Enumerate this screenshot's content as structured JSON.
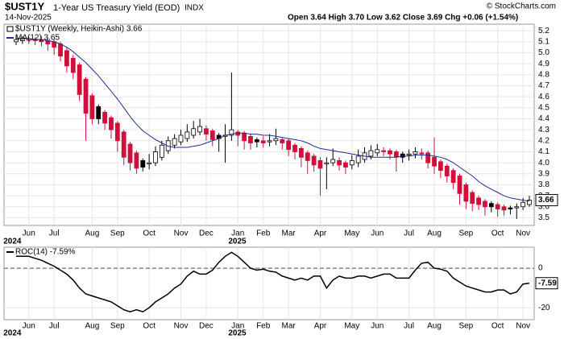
{
  "chart_data": [
    {
      "type": "candlestick",
      "symbol": "$UST1Y",
      "title": "1-Year US Treasury Yield (EOD)",
      "exchange": "INDX",
      "date": "14-Nov-2025",
      "quote": "Open 3.64 High 3.70 Low 3.62 Close 3.69 Chg +0.06 (+1.54%)",
      "copyright": "© StockCharts.com",
      "name": "$UST1Y (Weekly, Heikin-Ashi) 3.66",
      "open": [
        5.1,
        5.11,
        5.12,
        5.12,
        5.12,
        5.11,
        5.1,
        5.08,
        5.02,
        4.95,
        4.89,
        4.76,
        4.61,
        4.51,
        4.46,
        4.41,
        4.36,
        4.28,
        4.17,
        4.09,
        4.02,
        3.99,
        4.0,
        4.05,
        4.11,
        4.16,
        4.19,
        4.22,
        4.25,
        4.28,
        4.31,
        4.29,
        4.25,
        4.24,
        4.25,
        4.28,
        4.27,
        4.24,
        4.21,
        4.2,
        4.19,
        4.2,
        4.21,
        4.2,
        4.16,
        4.13,
        4.09,
        4.06,
        4.02,
        3.99,
        4.0,
        4.02,
        4.0,
        3.98,
        4.0,
        4.03,
        4.06,
        4.09,
        4.11,
        4.11,
        4.1,
        4.08,
        4.07,
        4.08,
        4.09,
        4.09,
        4.05,
        4.01,
        3.97,
        3.93,
        3.88,
        3.8,
        3.73,
        3.68,
        3.65,
        3.63,
        3.62,
        3.6,
        3.59,
        3.59,
        3.6,
        3.62
      ],
      "high": [
        5.16,
        5.15,
        5.15,
        5.14,
        5.15,
        5.14,
        5.12,
        5.1,
        5.05,
        4.98,
        4.91,
        4.78,
        4.63,
        4.53,
        4.48,
        4.43,
        4.38,
        4.3,
        4.19,
        4.11,
        4.04,
        4.08,
        4.15,
        4.2,
        4.24,
        4.26,
        4.3,
        4.35,
        4.38,
        4.4,
        4.34,
        4.31,
        4.27,
        4.35,
        4.82,
        4.3,
        4.29,
        4.26,
        4.23,
        4.24,
        4.26,
        4.31,
        4.23,
        4.22,
        4.18,
        4.15,
        4.11,
        4.08,
        4.05,
        4.05,
        4.13,
        4.05,
        4.02,
        4.07,
        4.12,
        4.14,
        4.16,
        4.17,
        4.14,
        4.13,
        4.12,
        4.1,
        4.12,
        4.14,
        4.13,
        4.11,
        4.23,
        4.03,
        3.99,
        3.95,
        3.9,
        3.82,
        3.75,
        3.7,
        3.67,
        3.65,
        3.64,
        3.62,
        3.61,
        3.63,
        3.68,
        3.7
      ],
      "low": [
        5.07,
        5.08,
        5.08,
        5.07,
        5.06,
        5.02,
        4.98,
        4.92,
        4.82,
        4.76,
        4.56,
        4.2,
        4.35,
        4.35,
        4.3,
        4.22,
        4.1,
        3.98,
        3.93,
        3.9,
        3.92,
        3.94,
        3.97,
        4.02,
        4.08,
        4.13,
        4.16,
        4.19,
        4.22,
        4.25,
        4.2,
        4.15,
        4.1,
        4.0,
        4.2,
        4.15,
        4.12,
        4.12,
        4.14,
        4.14,
        4.15,
        4.16,
        4.12,
        4.06,
        4.03,
        3.96,
        3.9,
        3.92,
        3.7,
        3.76,
        3.97,
        3.93,
        3.9,
        3.94,
        3.96,
        4.0,
        4.03,
        4.06,
        4.06,
        4.03,
        3.92,
        4.0,
        4.02,
        4.04,
        4.03,
        3.95,
        3.9,
        3.86,
        3.82,
        3.76,
        3.62,
        3.58,
        3.56,
        3.57,
        3.52,
        3.55,
        3.51,
        3.52,
        3.53,
        3.49,
        3.57,
        3.6
      ],
      "close": [
        5.12,
        5.13,
        5.12,
        5.11,
        5.1,
        5.08,
        5.05,
        4.97,
        4.88,
        4.82,
        4.62,
        4.45,
        4.4,
        4.4,
        4.36,
        4.3,
        4.2,
        4.05,
        4.0,
        3.95,
        3.96,
        4.0,
        4.1,
        4.16,
        4.2,
        4.22,
        4.25,
        4.28,
        4.31,
        4.33,
        4.26,
        4.21,
        4.22,
        4.25,
        4.3,
        4.25,
        4.2,
        4.18,
        4.19,
        4.18,
        4.2,
        4.22,
        4.18,
        4.12,
        4.1,
        4.05,
        4.02,
        3.98,
        3.95,
        4.0,
        4.03,
        3.98,
        3.96,
        4.02,
        4.06,
        4.09,
        4.11,
        4.12,
        4.1,
        4.08,
        4.05,
        4.05,
        4.08,
        4.1,
        4.08,
        4.0,
        3.97,
        3.93,
        3.88,
        3.82,
        3.72,
        3.65,
        3.63,
        3.62,
        3.6,
        3.6,
        3.58,
        3.57,
        3.58,
        3.6,
        3.64,
        3.66
      ],
      "up_color": "#ffffff",
      "down_color": "#d0103a",
      "neutral_color": "#000000",
      "series": [
        {
          "name": "MA(12) 3.65",
          "color": "#1f2d8c",
          "values": [
            5.13,
            5.13,
            5.13,
            5.12,
            5.12,
            5.11,
            5.1,
            5.08,
            5.05,
            5.01,
            4.96,
            4.91,
            4.85,
            4.79,
            4.72,
            4.65,
            4.58,
            4.5,
            4.42,
            4.35,
            4.29,
            4.25,
            4.21,
            4.18,
            4.15,
            4.14,
            4.14,
            4.14,
            4.15,
            4.16,
            4.18,
            4.2,
            4.22,
            4.25,
            4.26,
            4.27,
            4.27,
            4.26,
            4.26,
            4.25,
            4.25,
            4.24,
            4.23,
            4.22,
            4.21,
            4.2,
            4.18,
            4.15,
            4.13,
            4.12,
            4.11,
            4.1,
            4.09,
            4.08,
            4.07,
            4.06,
            4.05,
            4.05,
            4.05,
            4.05,
            4.05,
            4.06,
            4.06,
            4.07,
            4.07,
            4.07,
            4.06,
            4.05,
            4.03,
            4.0,
            3.96,
            3.92,
            3.88,
            3.83,
            3.79,
            3.76,
            3.73,
            3.7,
            3.68,
            3.67,
            3.66,
            3.65
          ]
        }
      ],
      "last_label": {
        "value": 3.66,
        "label": "3.66"
      },
      "ylim": [
        3.43,
        5.26
      ],
      "yticks": [
        3.5,
        3.6,
        3.7,
        3.8,
        3.9,
        {
          "value": 4,
          "label": "4.0"
        },
        4.1,
        4.2,
        4.3,
        4.4,
        4.5,
        4.6,
        4.7,
        4.8,
        4.9,
        {
          "value": 5,
          "label": "5.0"
        },
        5.1,
        5.2
      ],
      "xlim": [
        0,
        81
      ],
      "xticks": [
        {
          "value": 2,
          "label": "Jun"
        },
        {
          "value": 6,
          "label": "Jul"
        },
        {
          "value": 12,
          "label": "Aug"
        },
        {
          "value": 16,
          "label": "Sep"
        },
        {
          "value": 21,
          "label": "Oct"
        },
        {
          "value": 26,
          "label": "Nov"
        },
        {
          "value": 30,
          "label": "Dec"
        },
        {
          "value": 35,
          "label": "Jan"
        },
        {
          "value": 39,
          "label": "Feb"
        },
        {
          "value": 43,
          "label": "Mar"
        },
        {
          "value": 48,
          "label": "Apr"
        },
        {
          "value": 53,
          "label": "May"
        },
        {
          "value": 57,
          "label": "Jun"
        },
        {
          "value": 62,
          "label": "Jul"
        },
        {
          "value": 66,
          "label": "Aug"
        },
        {
          "value": 71,
          "label": "Sep"
        },
        {
          "value": 76,
          "label": "Oct"
        },
        {
          "value": 80,
          "label": "Nov"
        }
      ],
      "year_ticks": [
        {
          "value": -1.5,
          "label": "2024"
        },
        {
          "value": 34,
          "label": "2025"
        }
      ],
      "grid": true
    },
    {
      "type": "line",
      "series": [
        {
          "name": "ROC(14) -7.59%",
          "color": "#000000",
          "values": [
            6,
            6,
            6,
            5,
            4,
            2.5,
            1,
            -1,
            -3,
            -6,
            -10,
            -13,
            -14,
            -15,
            -16,
            -17,
            -19,
            -21,
            -22,
            -21,
            -22,
            -20,
            -17,
            -15,
            -13,
            -10,
            -8,
            -4,
            -1.5,
            -3,
            -3,
            -1,
            3,
            6,
            8,
            6,
            3,
            0,
            -1,
            -0.5,
            -1.5,
            -2,
            -4,
            -5,
            -6,
            -5,
            -6,
            -4,
            -4,
            -10,
            -6,
            -4,
            -5,
            -5,
            -4,
            -4,
            -5,
            -4,
            -3,
            -3,
            -5,
            -5,
            -5,
            -1,
            2.5,
            3,
            0,
            -0.5,
            -1.5,
            -5,
            -7,
            -9,
            -10,
            -11,
            -12,
            -12,
            -11,
            -11,
            -13,
            -12,
            -8,
            -7.59
          ]
        }
      ],
      "last_label": {
        "value": -7.59,
        "label": "-7.59"
      },
      "ylim": [
        -26,
        10.6
      ],
      "yticks": [
        0,
        -20
      ],
      "reference_line": 0,
      "grid": true
    }
  ]
}
